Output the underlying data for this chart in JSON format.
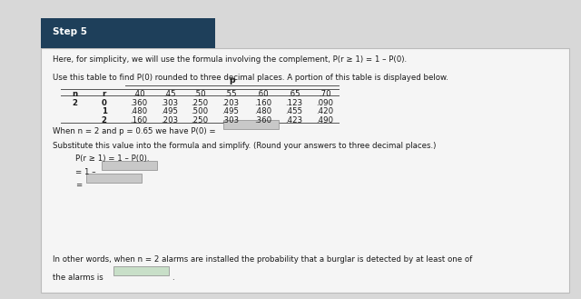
{
  "step_label": "Step 5",
  "step_bg": "#1e3f5a",
  "bg_color": "#d8d8d8",
  "card_color": "#f5f5f5",
  "line1": "Here, for simplicity, we will use the formula involving the complement, P(r ≥ 1) = 1 – P(0).",
  "line2": "Use this table to find P(0) rounded to three decimal places. A portion of this table is displayed below.",
  "table_header_p": "p",
  "table_cols": [
    "n",
    "r",
    ".40",
    ".45",
    ".50",
    ".55",
    ".60",
    ".65",
    ".70"
  ],
  "table_rows": [
    [
      "2",
      "0",
      ".360",
      ".303",
      ".250",
      ".203",
      ".160",
      ".123",
      ".090"
    ],
    [
      "",
      "1",
      ".480",
      ".495",
      ".500",
      ".495",
      ".480",
      ".455",
      ".420"
    ],
    [
      "",
      "2",
      ".160",
      ".203",
      ".250",
      ".303",
      ".360",
      ".423",
      ".490"
    ]
  ],
  "when_line": "When n = 2 and p = 0.65 we have P(0) =",
  "sub_line": "Substitute this value into the formula and simplify. (Round your answers to three decimal places.)",
  "formula_line": "P(r ≥ 1) = 1 – P(0).",
  "eq1_prefix": "= 1 –",
  "eq2_prefix": "=",
  "final_line1": "In other words, when n = 2 alarms are installed the probability that a burglar is detected by at least one of",
  "final_line2": "the alarms is",
  "input_box_color": "#c8c8c8",
  "highlight_color": "#c8dfc8",
  "text_color": "#1a1a1a",
  "line_color": "#555555"
}
